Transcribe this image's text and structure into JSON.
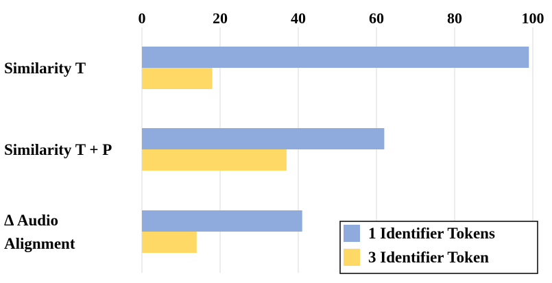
{
  "chart_data": {
    "type": "bar",
    "orientation": "horizontal",
    "categories": [
      [
        "Similarity T"
      ],
      [
        "Similarity T + P"
      ],
      [
        "Δ Audio",
        "Alignment"
      ]
    ],
    "series": [
      {
        "name": "1 Identifier Tokens",
        "color": "#8FAADC",
        "values": [
          99,
          62,
          41
        ]
      },
      {
        "name": "3 Identifier Token",
        "color": "#FFD966",
        "values": [
          18,
          37,
          14
        ]
      }
    ],
    "xlim": [
      0,
      100
    ],
    "xticks": [
      0,
      20,
      40,
      60,
      80,
      100
    ],
    "x_axis_position": "top",
    "grid": true,
    "legend_position": "bottom-right"
  }
}
